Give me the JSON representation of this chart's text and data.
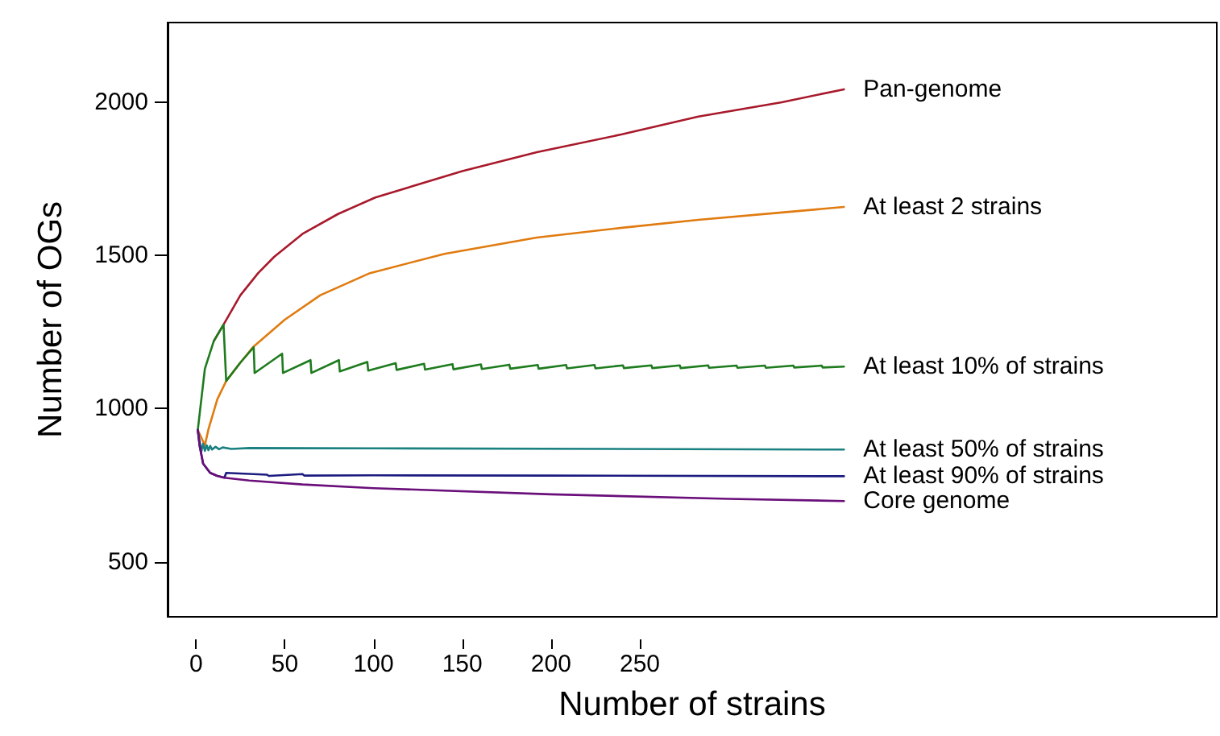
{
  "chart_data": {
    "type": "line",
    "xlabel": "Number of strains",
    "ylabel": "Number of OGs",
    "xlim": [
      -16,
      575
    ],
    "xticks": [
      0,
      50,
      100,
      150,
      200,
      250
    ],
    "ylim": [
      320,
      2260
    ],
    "yticks": [
      500,
      1000,
      1500,
      2000
    ],
    "grid": false,
    "legend": false,
    "marker": "none",
    "line_style": "solid",
    "series": [
      {
        "name": "Pan-genome",
        "color": "#a8192b",
        "x": [
          10,
          15.5,
          25,
          35,
          44,
          60,
          80,
          101,
          150,
          192,
          240,
          283,
          330,
          365
        ],
        "values": [
          1220,
          1274,
          1370,
          1442,
          1495,
          1570,
          1635,
          1689,
          1775,
          1837,
          1895,
          1953,
          2000,
          2042
        ]
      },
      {
        "name": "At least 2 strains",
        "color": "#e07b10",
        "x": [
          1,
          5,
          7,
          12,
          17,
          25,
          32,
          50,
          70,
          98,
          140,
          192,
          240,
          283,
          330,
          365
        ],
        "values": [
          930,
          880,
          932,
          1030,
          1090,
          1150,
          1200,
          1290,
          1370,
          1442,
          1505,
          1558,
          1590,
          1616,
          1640,
          1658
        ]
      },
      {
        "name": "At least 10% of strains",
        "color": "#1e7b1e",
        "x": [
          1,
          5,
          10,
          15.5,
          17,
          25,
          32.5,
          33,
          48.5,
          49,
          64.5,
          65,
          80.5,
          81,
          96.5,
          97,
          112.5,
          113,
          128.5,
          129,
          144.5,
          145,
          160.5,
          161,
          176.5,
          177,
          192.5,
          193,
          208.5,
          209,
          224.5,
          225,
          240.5,
          241,
          256.5,
          257,
          272.5,
          273,
          288.5,
          289,
          304.5,
          305,
          320.5,
          321,
          336.5,
          337,
          352.5,
          353,
          365
        ],
        "values": [
          930,
          1130,
          1220,
          1274,
          1090,
          1150,
          1200,
          1116,
          1179,
          1116,
          1158,
          1116,
          1158,
          1121,
          1152,
          1124,
          1148,
          1126,
          1146,
          1127,
          1145,
          1128,
          1144,
          1129,
          1143,
          1130,
          1142,
          1130,
          1142,
          1131,
          1142,
          1131,
          1141,
          1132,
          1141,
          1132,
          1141,
          1132,
          1141,
          1133,
          1140,
          1133,
          1140,
          1133,
          1140,
          1134,
          1140,
          1134,
          1137
        ]
      },
      {
        "name": "At least 50% of strains",
        "color": "#1a8080",
        "x": [
          1,
          2,
          3,
          4,
          5,
          6,
          7,
          8,
          9,
          11,
          13,
          15,
          20,
          30,
          100,
          365
        ],
        "values": [
          930,
          895,
          860,
          885,
          862,
          880,
          864,
          878,
          866,
          875,
          867,
          873,
          868,
          871,
          870,
          866
        ]
      },
      {
        "name": "At least 90% of strains",
        "color": "#1c1c80",
        "x": [
          1,
          2,
          4,
          8,
          12,
          16,
          17,
          40,
          41,
          60,
          61,
          100,
          200,
          365
        ],
        "values": [
          930,
          880,
          820,
          790,
          780,
          774,
          790,
          784,
          780,
          786,
          781,
          782,
          781,
          779
        ]
      },
      {
        "name": "Core genome",
        "color": "#6a0f7a",
        "x": [
          1,
          2,
          4,
          8,
          12,
          16,
          30,
          60,
          100,
          200,
          300,
          365
        ],
        "values": [
          930,
          880,
          820,
          790,
          780,
          774,
          765,
          752,
          740,
          720,
          705,
          698
        ]
      }
    ]
  }
}
